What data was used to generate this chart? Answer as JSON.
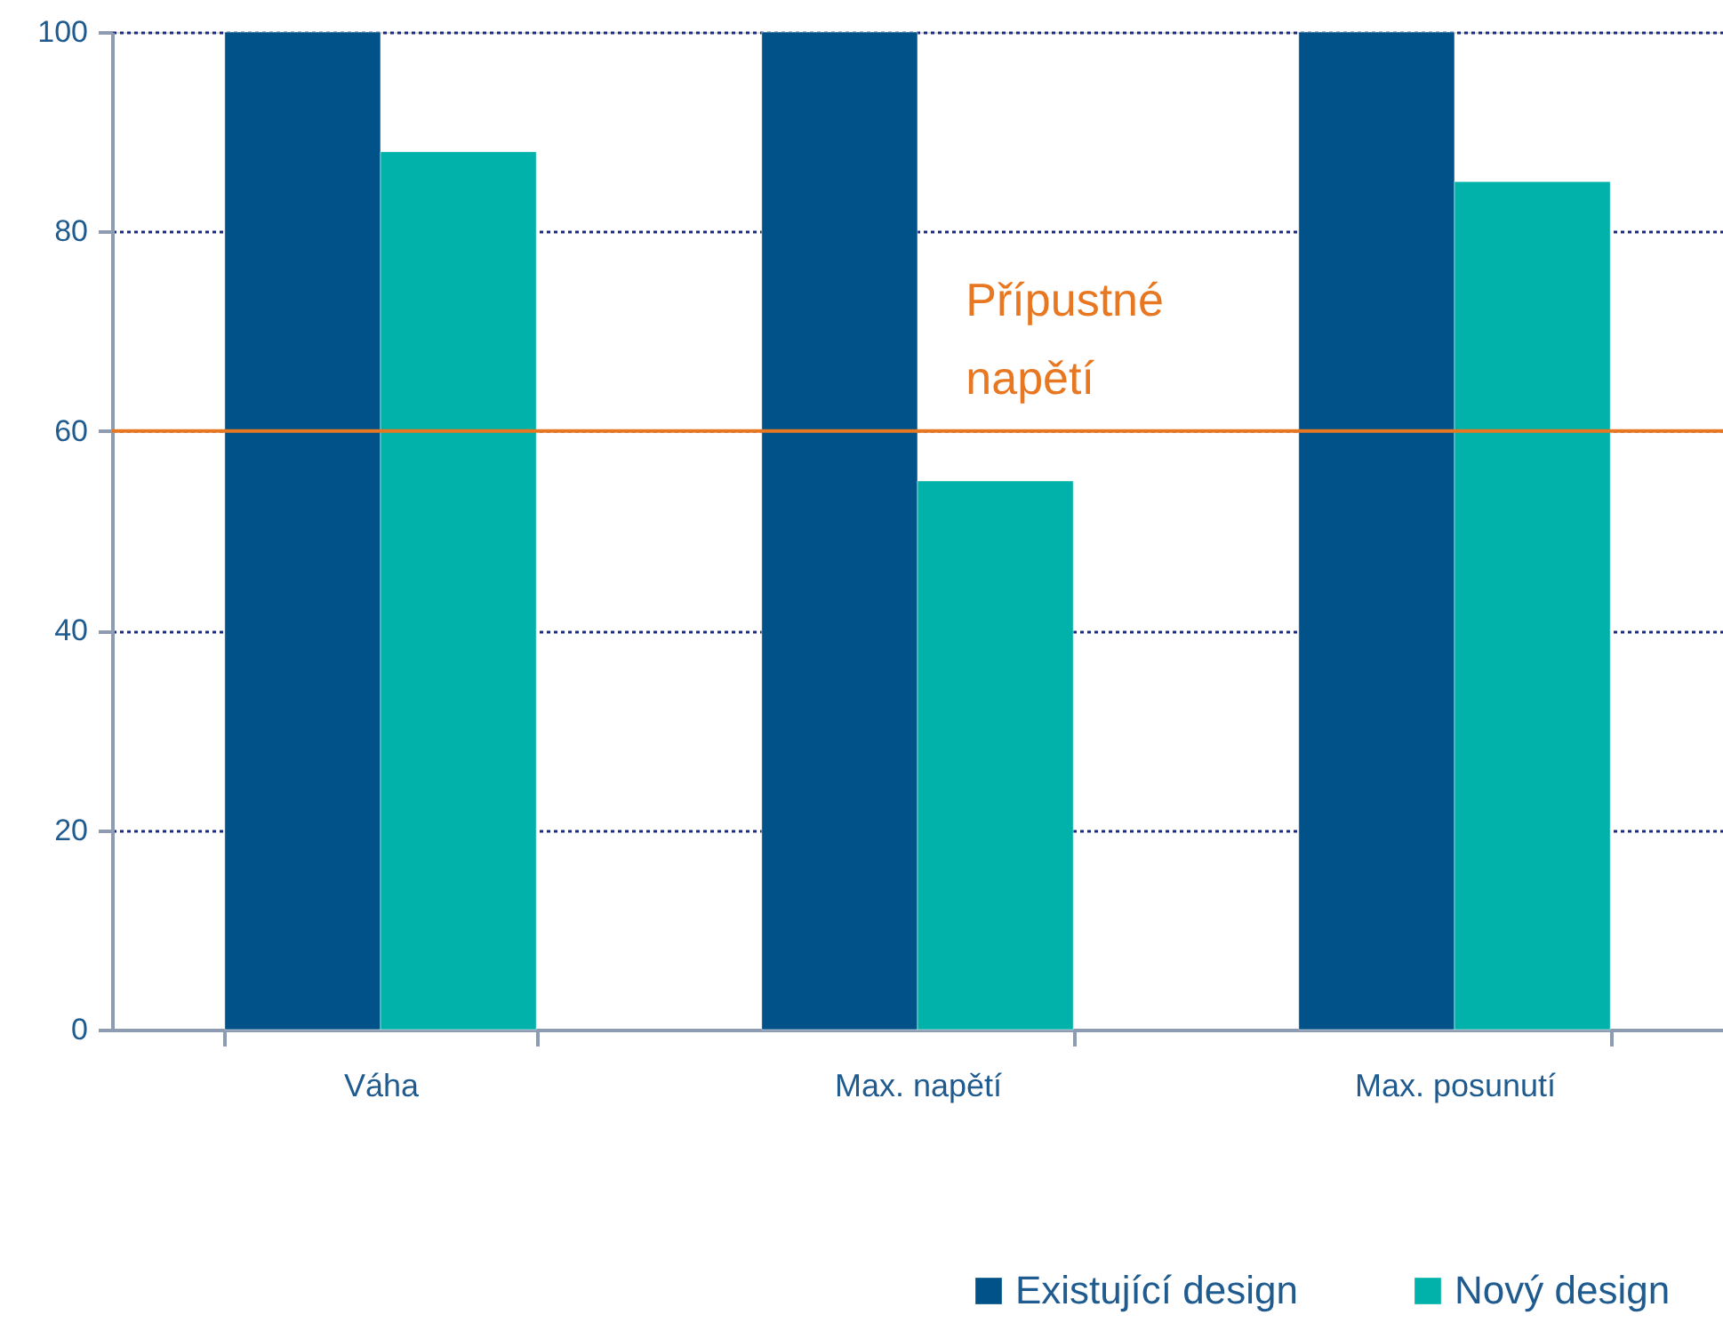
{
  "chart_data": {
    "type": "bar",
    "categories": [
      "Váha",
      "Max. napětí",
      "Max. posunutí"
    ],
    "series": [
      {
        "name": "Existující design",
        "color": "#005288",
        "values": [
          100,
          100,
          100
        ]
      },
      {
        "name": "Nový design",
        "color": "#00b2a9",
        "values": [
          88,
          55,
          85
        ]
      }
    ],
    "ylim": [
      0,
      100
    ],
    "yticks": [
      0,
      20,
      40,
      60,
      80,
      100
    ],
    "grid": "y",
    "legend": "bottom right",
    "ref_lines": [
      {
        "axis": "y",
        "value": 60,
        "label": "Přípustné napětí",
        "color": "#e87722"
      }
    ]
  }
}
